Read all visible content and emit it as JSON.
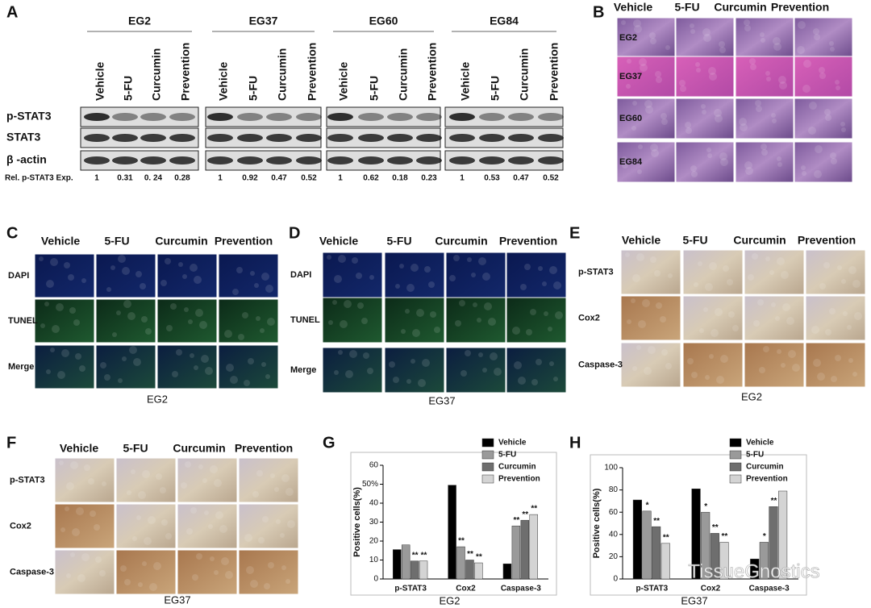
{
  "panels": {
    "a": {
      "label": "A",
      "rows": [
        "p-STAT3",
        "STAT3",
        "β -actin"
      ],
      "rel_label": "Rel. p-STAT3 Exp.",
      "groups": [
        {
          "name": "EG2",
          "columns": [
            "Vehicle",
            "5-FU",
            "Curcumin",
            "Prevention"
          ],
          "rel": [
            "1",
            "0.31",
            "0. 24",
            "0.28"
          ]
        },
        {
          "name": "EG37",
          "columns": [
            "Vehicle",
            "5-FU",
            "Curcumin",
            "Prevention"
          ],
          "rel": [
            "1",
            "0.92",
            "0.47",
            "0.52"
          ]
        },
        {
          "name": "EG60",
          "columns": [
            "Vehicle",
            "5-FU",
            "Curcumin",
            "Prevention"
          ],
          "rel": [
            "1",
            "0.62",
            "0.18",
            "0.23"
          ]
        },
        {
          "name": "EG84",
          "columns": [
            "Vehicle",
            "5-FU",
            "Curcumin",
            "Prevention"
          ],
          "rel": [
            "1",
            "0.53",
            "0.47",
            "0.52"
          ]
        }
      ]
    },
    "b": {
      "label": "B",
      "columns": [
        "Vehicle",
        "5-FU",
        "Curcumin",
        "Prevention"
      ],
      "rows": [
        "EG2",
        "EG37",
        "EG60",
        "EG84"
      ]
    },
    "c": {
      "label": "C",
      "columns": [
        "Vehicle",
        "5-FU",
        "Curcumin",
        "Prevention"
      ],
      "rows": [
        "DAPI",
        "TUNEL",
        "Merge"
      ],
      "caption": "EG2"
    },
    "d": {
      "label": "D",
      "columns": [
        "Vehicle",
        "5-FU",
        "Curcumin",
        "Prevention"
      ],
      "rows": [
        "DAPI",
        "TUNEL",
        "Merge"
      ],
      "caption": "EG37"
    },
    "e": {
      "label": "E",
      "columns": [
        "Vehicle",
        "5-FU",
        "Curcumin",
        "Prevention"
      ],
      "rows": [
        "p-STAT3",
        "Cox2",
        "Caspase-3"
      ],
      "caption": "EG2"
    },
    "f": {
      "label": "F",
      "columns": [
        "Vehicle",
        "5-FU",
        "Curcumin",
        "Prevention"
      ],
      "rows": [
        "p-STAT3",
        "Cox2",
        "Caspase-3"
      ],
      "caption": "EG37"
    }
  },
  "chart_data": [
    {
      "type": "bar",
      "label": "G",
      "ylabel": "Positive cells(%)",
      "caption": "EG2",
      "categories": [
        "p-STAT3",
        "Cox2",
        "Caspase-3"
      ],
      "ylim": [
        0,
        60
      ],
      "yticks": [
        0,
        10,
        20,
        30,
        40,
        {
          "value": 50,
          "label": "50%"
        },
        60
      ],
      "series": [
        {
          "name": "Vehicle",
          "color": "#000000",
          "values": [
            15.5,
            49.5,
            8
          ]
        },
        {
          "name": "5-FU",
          "color": "#9a9a9a",
          "values": [
            18,
            17,
            28
          ],
          "annotations": [
            null,
            "**",
            "**"
          ]
        },
        {
          "name": "Curcumin",
          "color": "#6e6e6e",
          "values": [
            9.5,
            10,
            31
          ],
          "annotations": [
            "**",
            "**",
            "**"
          ]
        },
        {
          "name": "Prevention",
          "color": "#d4d4d4",
          "values": [
            9.5,
            8.5,
            34
          ],
          "annotations": [
            "**",
            "**",
            "**"
          ]
        }
      ]
    },
    {
      "type": "bar",
      "label": "H",
      "ylabel": "Positive cells(%)",
      "caption": "EG37",
      "categories": [
        "p-STAT3",
        "Cox2",
        "Caspase-3"
      ],
      "ylim": [
        0,
        100
      ],
      "yticks": [
        0,
        20,
        40,
        60,
        80,
        100
      ],
      "series": [
        {
          "name": "Vehicle",
          "color": "#000000",
          "values": [
            71,
            81,
            18
          ]
        },
        {
          "name": "5-FU",
          "color": "#9a9a9a",
          "values": [
            61,
            60,
            33
          ],
          "annotations": [
            "*",
            "*",
            "*"
          ]
        },
        {
          "name": "Curcumin",
          "color": "#6e6e6e",
          "values": [
            47,
            41,
            65
          ],
          "annotations": [
            "**",
            "**",
            "**"
          ]
        },
        {
          "name": "Prevention",
          "color": "#d4d4d4",
          "values": [
            32,
            33,
            79
          ],
          "annotations": [
            "**",
            "**",
            null
          ]
        }
      ]
    }
  ],
  "watermark": "TissueGnostics"
}
